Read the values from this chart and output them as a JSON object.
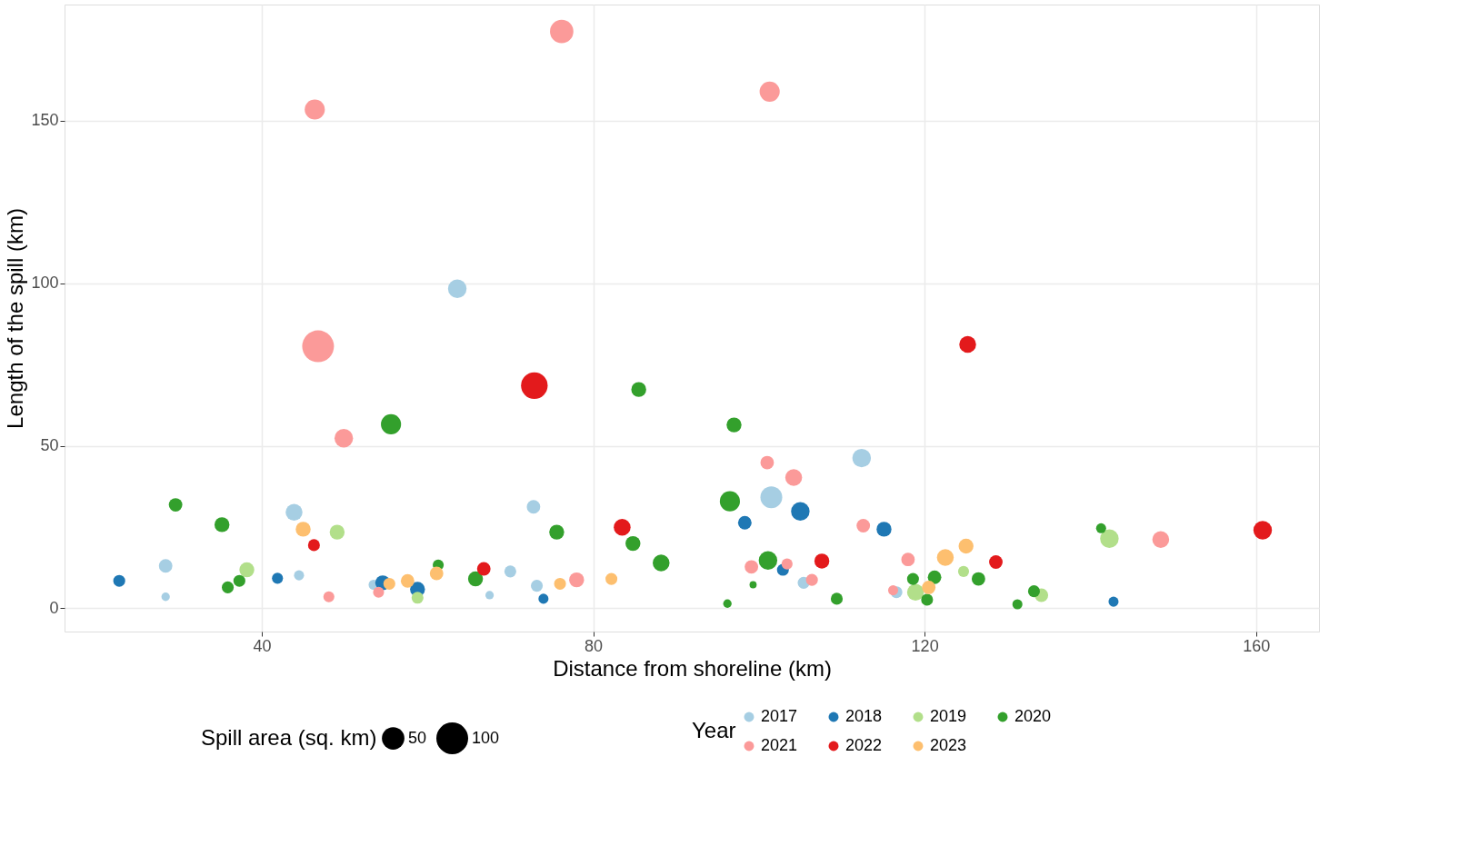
{
  "chart_data": {
    "type": "bubble",
    "xlabel": "Distance from shoreline (km)",
    "ylabel": "Length of the spill (km)",
    "legend_title": "Year",
    "annotations": [
      "Spill area (sq. km)"
    ],
    "size_legend": [
      50,
      100
    ],
    "xlim": [
      16.2,
      167.6
    ],
    "xticks": [
      40,
      80,
      120,
      160
    ],
    "ylim": [
      -7.2,
      185.8
    ],
    "yticks": [
      0,
      50,
      100,
      150
    ],
    "grid": true,
    "legend": "bottom",
    "series": [
      {
        "name": "2017",
        "color": "#a6cee3",
        "x": [
          28.4,
          28.4,
          43.9,
          44.5,
          53.5,
          63.6,
          67.5,
          70.0,
          72.8,
          73.2,
          101.5,
          105.4,
          112.4,
          116.6
        ],
        "values": [
          13.0,
          3.5,
          29.5,
          10.1,
          7.2,
          98.3,
          4.0,
          11.3,
          31.2,
          6.9,
          34.1,
          7.8,
          46.2,
          4.9
        ],
        "sizes": [
          18,
          7,
          28,
          10,
          10,
          34,
          7,
          14,
          18,
          14,
          47,
          14,
          34,
          14
        ]
      },
      {
        "name": "2018",
        "color": "#1f78b4",
        "x": [
          22.8,
          41.9,
          54.6,
          58.8,
          74.0,
          98.3,
          105.0,
          102.9,
          115.1,
          142.8
        ],
        "values": [
          8.4,
          9.2,
          7.8,
          5.8,
          2.9,
          26.3,
          29.8,
          11.8,
          24.3,
          2.0
        ],
        "sizes": [
          14,
          12,
          22,
          22,
          10,
          18,
          34,
          14,
          22,
          10
        ]
      },
      {
        "name": "2019",
        "color": "#b2df8a",
        "x": [
          38.2,
          49.1,
          58.8,
          118.9,
          124.7,
          134.1,
          142.3
        ],
        "values": [
          11.8,
          23.4,
          3.2,
          4.9,
          11.3,
          4.0,
          21.4
        ],
        "sizes": [
          22,
          22,
          14,
          28,
          12,
          18,
          34
        ]
      },
      {
        "name": "2020",
        "color": "#33a02c",
        "x": [
          29.6,
          35.2,
          35.9,
          37.3,
          55.6,
          61.3,
          65.8,
          75.6,
          84.8,
          85.5,
          88.2,
          96.2,
          96.5,
          97.0,
          99.3,
          101.1,
          109.4,
          118.6,
          120.3,
          121.2,
          126.5,
          131.2,
          133.2,
          141.3
        ],
        "values": [
          31.8,
          25.7,
          6.4,
          8.4,
          56.6,
          13.3,
          9.0,
          23.4,
          19.9,
          67.3,
          13.9,
          1.4,
          32.9,
          56.4,
          7.2,
          14.7,
          2.9,
          9.0,
          2.6,
          9.5,
          9.0,
          1.2,
          5.2,
          24.6
        ],
        "sizes": [
          18,
          22,
          14,
          14,
          40,
          12,
          22,
          22,
          22,
          22,
          28,
          7,
          40,
          22,
          5,
          34,
          14,
          14,
          14,
          18,
          18,
          10,
          14,
          10
        ]
      },
      {
        "name": "2021",
        "color": "#fb9a99",
        "x": [
          46.4,
          46.8,
          48.1,
          49.9,
          54.1,
          76.2,
          78.0,
          101.3,
          99.1,
          101.0,
          103.4,
          104.2,
          106.4,
          112.6,
          118.0,
          116.2,
          148.5
        ],
        "values": [
          153.5,
          80.6,
          3.5,
          52.3,
          4.9,
          177.5,
          8.7,
          159.0,
          12.7,
          44.8,
          13.6,
          40.2,
          8.7,
          25.4,
          15.0,
          5.5,
          21.1
        ],
        "sizes": [
          40,
          100,
          12,
          34,
          12,
          54,
          22,
          40,
          18,
          18,
          12,
          28,
          14,
          18,
          18,
          10,
          28
        ]
      },
      {
        "name": "2022",
        "color": "#e31a1c",
        "x": [
          46.3,
          66.8,
          72.9,
          83.5,
          107.6,
          125.2,
          128.6,
          160.8
        ],
        "values": [
          19.4,
          12.1,
          68.5,
          24.9,
          14.5,
          81.2,
          14.2,
          24.0
        ],
        "sizes": [
          14,
          18,
          70,
          28,
          22,
          28,
          18,
          34
        ]
      },
      {
        "name": "2023",
        "color": "#fdbf6f",
        "x": [
          45.0,
          55.4,
          57.6,
          61.1,
          76.0,
          82.2,
          120.5,
          122.5,
          125.0
        ],
        "values": [
          24.3,
          7.5,
          8.4,
          10.7,
          7.5,
          9.0,
          6.4,
          15.6,
          19.1
        ],
        "sizes": [
          22,
          14,
          18,
          18,
          14,
          14,
          18,
          28,
          22
        ]
      }
    ]
  }
}
